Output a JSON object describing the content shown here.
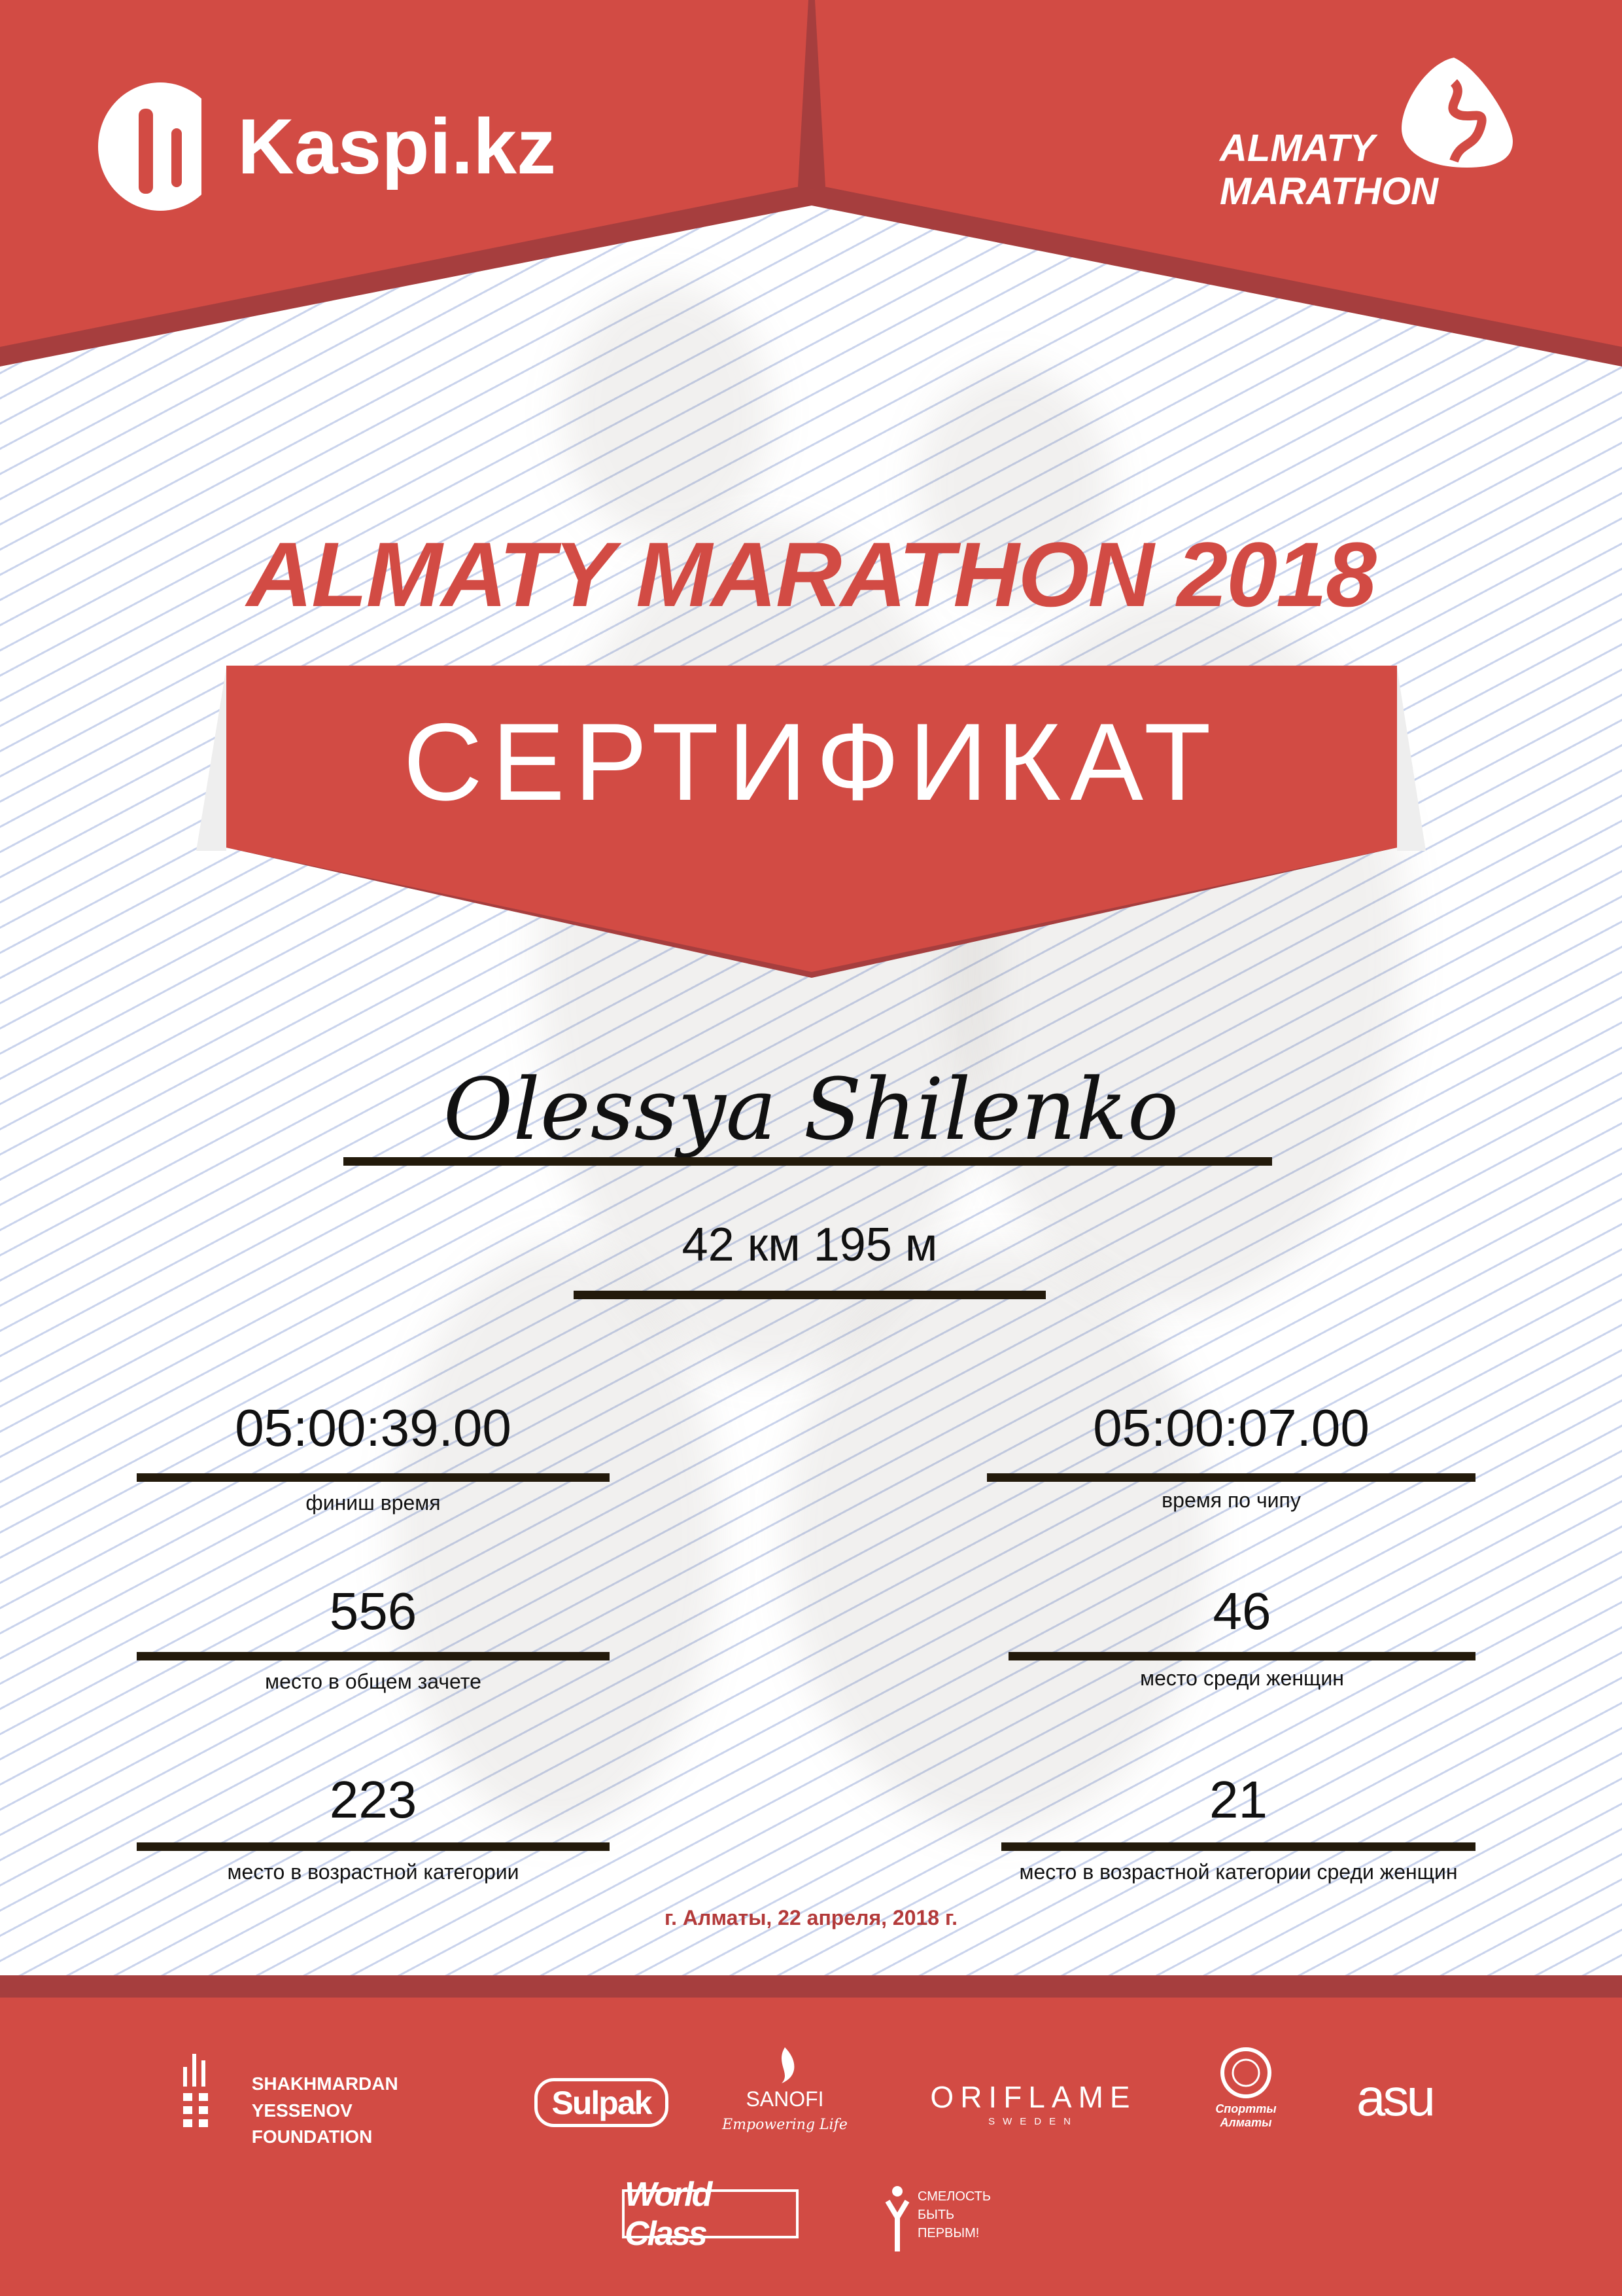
{
  "header": {
    "sponsor_logo": "Kaspi.kz",
    "event_logo_line1": "ALMATY",
    "event_logo_line2": "MARATHON"
  },
  "title": "ALMATY MARATHON 2018",
  "banner": "СЕРТИФИКАТ",
  "participant": {
    "name": "Olessya Shilenko",
    "distance": "42 км 195 м"
  },
  "results": [
    {
      "value": "05:00:39.00",
      "label": "финиш время"
    },
    {
      "value": "05:00:07.00",
      "label": "время по чипу"
    },
    {
      "value": "556",
      "label": "место в общем зачете"
    },
    {
      "value": "46",
      "label": "место среди женщин"
    },
    {
      "value": "223",
      "label": "место в возрастной категории"
    },
    {
      "value": "21",
      "label": "место в возрастной категории среди женщин"
    }
  ],
  "date": "г. Алматы, 22 апреля, 2018 г.",
  "partners": {
    "yessenov_line1": "SHAKHMARDAN YESSENOV",
    "yessenov_line2": "FOUNDATION",
    "sulpak": "Sulpak",
    "sanofi": "SANOFI",
    "sanofi_tagline": "Empowering Life",
    "oriflame": "ORIFLAME",
    "oriflame_sub": "SWEDEN",
    "sport_almaty": "Спортты Алматы",
    "asu": "asu",
    "world_class": "World Class",
    "smelost": "СМЕЛОСТЬ БЫТЬ ПЕРВЫМ!"
  },
  "colors": {
    "primary_red": "#d24b44",
    "shadow_red": "#a63e3e",
    "date_red": "#b33a3a"
  }
}
